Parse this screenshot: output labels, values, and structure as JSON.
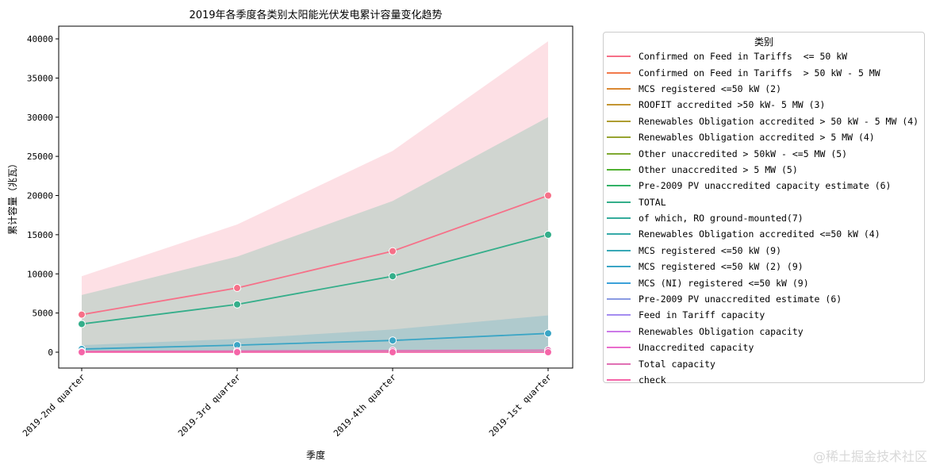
{
  "chart_data": {
    "type": "line",
    "title": "2019年各季度各类别太阳能光伏发电累计容量变化趋势",
    "xlabel": "季度",
    "ylabel": "累计容量（兆瓦）",
    "categories": [
      "2019-2nd quarter",
      "2019-3rd quarter",
      "2019-4th quarter",
      "2019-1st quarter"
    ],
    "ylim": [
      -2000,
      41500
    ],
    "yticks": [
      0,
      5000,
      10000,
      15000,
      20000,
      25000,
      30000,
      35000,
      40000
    ],
    "grid": false,
    "legend_title": "类别",
    "legend_placement": "outside-right",
    "legend": [
      {
        "label": "Confirmed on Feed in Tariffs  <= 50 kW",
        "color": "#f67088"
      },
      {
        "label": "Confirmed on Feed in Tariffs  > 50 kW - 5 MW",
        "color": "#f2794b"
      },
      {
        "label": "MCS registered <=50 kW (2)",
        "color": "#db8831"
      },
      {
        "label": "ROOFIT accredited >50 kW- 5 MW (3)",
        "color": "#c39532"
      },
      {
        "label": "Renewables Obligation accredited > 50 kW - 5 MW (4)",
        "color": "#ae9d31"
      },
      {
        "label": "Renewables Obligation accredited > 5 MW (4)",
        "color": "#97a431"
      },
      {
        "label": "Other unaccredited > 50kW - <=5 MW (5)",
        "color": "#7fa931"
      },
      {
        "label": "Other unaccredited > 5 MW (5)",
        "color": "#50b131"
      },
      {
        "label": "Pre-2009 PV unaccredited capacity estimate (6)",
        "color": "#32b166"
      },
      {
        "label": "TOTAL",
        "color": "#34ae8a"
      },
      {
        "label": "of which, RO ground-mounted(7)",
        "color": "#35ac9c"
      },
      {
        "label": "Renewables Obligation accredited <=50 kW (4)",
        "color": "#36aaa9"
      },
      {
        "label": "MCS registered <=50 kW (9)",
        "color": "#38a8b6"
      },
      {
        "label": "MCS registered <=50 kW (2) (9)",
        "color": "#3aa5c5"
      },
      {
        "label": "MCS (NI) registered <=50 kW (9)",
        "color": "#3ca1d9"
      },
      {
        "label": "Pre-2009 PV unaccredited estimate (6)",
        "color": "#8a9ae2"
      },
      {
        "label": "Feed in Tariff capacity",
        "color": "#a48cf0"
      },
      {
        "label": "Renewables Obligation capacity",
        "color": "#cc7ae8"
      },
      {
        "label": "Unaccredited capacity",
        "color": "#ea6ccc"
      },
      {
        "label": "Total capacity",
        "color": "#e070b4"
      },
      {
        "label": "check",
        "color": "#f565a8"
      }
    ],
    "series": [
      {
        "legend_index": 0,
        "values": [
          4800,
          8200,
          12900,
          20000
        ],
        "ci_low": [
          0,
          0,
          0,
          0
        ],
        "ci_high": [
          9700,
          16300,
          25700,
          39700
        ]
      },
      {
        "legend_index": 9,
        "values": [
          3600,
          6100,
          9700,
          15000
        ],
        "ci_low": [
          0,
          0,
          0,
          0
        ],
        "ci_high": [
          7300,
          12200,
          19300,
          30000
        ]
      },
      {
        "legend_index": 13,
        "values": [
          400,
          900,
          1500,
          2400
        ],
        "ci_low": [
          0,
          0,
          0,
          0
        ],
        "ci_high": [
          900,
          1700,
          2900,
          4700
        ]
      },
      {
        "legend_index": 19,
        "values": [
          100,
          150,
          200,
          250
        ]
      },
      {
        "legend_index": 20,
        "values": [
          0,
          0,
          0,
          0
        ]
      }
    ]
  },
  "watermark": "@稀土掘金技术社区"
}
